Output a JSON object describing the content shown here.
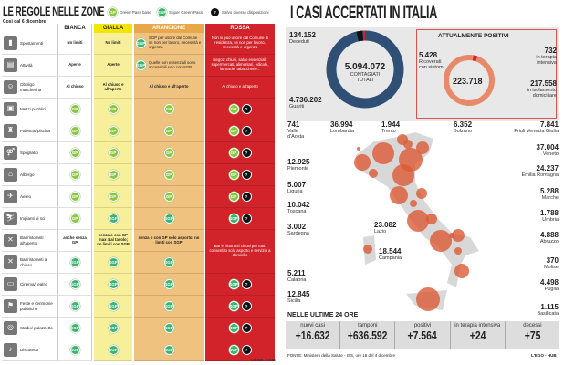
{
  "left": {
    "title": "LE REGOLE NELLE ZONE",
    "subtitle": "Così dal 6 dicembre",
    "legend": {
      "gp": "Green Pass base",
      "sgp": "Super Green Pass",
      "q": "Salvo diverse disposizioni"
    },
    "badges": {
      "gp": "GP",
      "sgp": "SGP",
      "q": "?"
    },
    "zones": [
      "BIANCA",
      "GIALLA",
      "ARANCIONE",
      "ROSSA"
    ],
    "rows": [
      {
        "label": "Spostamenti",
        "icon": "▮",
        "cells": [
          "No limiti",
          "No limiti",
          {
            "b": "sgp",
            "t": "SGP per uscire dal Comune se non per lavoro, necessità e urgenza"
          },
          "Non si può uscire dal Comune di residenza, se non per lavoro, necessità e urgenza"
        ]
      },
      {
        "label": "Attività",
        "icon": "▤",
        "cells": [
          "Aperte",
          "Aperte",
          {
            "b": "sgp",
            "t": "Quelle non essenziali sono accessibili solo con SGP"
          },
          "Negozi chiusi, salvo essenziali: supermercati, alimentari, edicole, farmacie, tabaccherie..."
        ]
      },
      {
        "label": "Obbligo mascherina",
        "icon": "☺",
        "cells": [
          "Al chiuso",
          "Al chiuso e all'aperto",
          "Al chiuso e all'aperto",
          "Al chiuso e all'aperto"
        ]
      },
      {
        "label": "Mezzi pubblici",
        "icon": "▣",
        "cells": [
          "gp",
          "gp",
          "gp",
          "gp+q"
        ]
      },
      {
        "label": "Palestra/ piscina",
        "icon": "♜",
        "cells": [
          "gp",
          "gp",
          "gp",
          "gp+q"
        ]
      },
      {
        "label": "Spogliatoi",
        "icon": "⚤",
        "cells": [
          "gp",
          "gp",
          "gp",
          "gp+q"
        ]
      },
      {
        "label": "Albergo",
        "icon": "⌂",
        "cells": [
          "gp",
          "gp",
          "gp",
          "gp+q"
        ]
      },
      {
        "label": "Aereo",
        "icon": "✈",
        "cells": [
          "gp",
          "gp",
          "gp",
          "gp+q"
        ]
      },
      {
        "label": "Impianti di sci",
        "icon": "⛷",
        "cells": [
          "gp",
          "sgp",
          "sgp",
          "sgp+q"
        ]
      },
      {
        "label": "Bar/ristoranti all'aperto",
        "icon": "✕",
        "cells": [
          "anche senza GP",
          "senza o con GP max 4 al tavolo; no limiti con SGP",
          "senza o con GP solo asporto; no limiti con SGP",
          {
            "span": 2,
            "t": "Bar e ristoranti chiusi per tutti: consentito solo asporto e servizio a domicilio"
          }
        ]
      },
      {
        "label": "Bar/ristoranti al chiuso",
        "icon": "✕",
        "cells": [
          "sgp",
          "sgp",
          "sgp",
          null
        ]
      },
      {
        "label": "Cinema/ teatro",
        "icon": "▭",
        "cells": [
          "sgp",
          "sgp",
          "sgp",
          "sgp+q"
        ]
      },
      {
        "label": "Feste e cerimonie pubbliche",
        "icon": "⚑",
        "cells": [
          "sgp",
          "sgp",
          "sgp",
          "sgp+q"
        ]
      },
      {
        "label": "Stadio/ palazzetto",
        "icon": "◎",
        "cells": [
          "sgp",
          "sgp",
          "sgp",
          "sgp+q"
        ]
      },
      {
        "label": "Discoteca",
        "icon": "♪",
        "cells": [
          "sgp",
          "sgp",
          "sgp",
          "sgp+q"
        ]
      }
    ],
    "credit": "L'EGO - HUB"
  },
  "right": {
    "title": "I CASI ACCERTATI IN ITALIA",
    "total": {
      "value": "5.094.072",
      "label1": "CONTAGIATI",
      "label2": "TOTALI"
    },
    "deceduti": {
      "value": "134.152",
      "label": "Deceduti"
    },
    "guariti": {
      "value": "4.736.202",
      "label": "Guariti"
    },
    "positivi": {
      "title": "ATTUALMENTE POSITIVI",
      "value": "223.718",
      "ricoverati": {
        "value": "5.428",
        "label1": "Ricoverati",
        "label2": "con sintomi"
      },
      "terapia": {
        "value": "732",
        "label1": "in terapia",
        "label2": "intensiva"
      },
      "isolamento": {
        "value": "217.558",
        "label1": "in isolamento",
        "label2": "domiciliare"
      }
    },
    "regions": [
      {
        "name": "Valle d'Aosta",
        "value": "741"
      },
      {
        "name": "Lombardia",
        "value": "36.994"
      },
      {
        "name": "Trento",
        "value": "1.944"
      },
      {
        "name": "Bolzano",
        "value": "6.352"
      },
      {
        "name": "Friuli Venezia Giulia",
        "value": "7.841"
      },
      {
        "name": "Piemonte",
        "value": "12.925"
      },
      {
        "name": "Veneto",
        "value": "37.004"
      },
      {
        "name": "Emilia Romagna",
        "value": "24.237"
      },
      {
        "name": "Liguria",
        "value": "5.007"
      },
      {
        "name": "Marche",
        "value": "5.288"
      },
      {
        "name": "Toscana",
        "value": "10.042"
      },
      {
        "name": "Umbria",
        "value": "1.788"
      },
      {
        "name": "Sardegna",
        "value": "3.002"
      },
      {
        "name": "Lazio",
        "value": "23.082"
      },
      {
        "name": "Abruzzo",
        "value": "4.888"
      },
      {
        "name": "Campania",
        "value": "18.544"
      },
      {
        "name": "Molise",
        "value": "370"
      },
      {
        "name": "Calabria",
        "value": "5.211"
      },
      {
        "name": "Puglia",
        "value": "4.498"
      },
      {
        "name": "Sicilia",
        "value": "12.845"
      },
      {
        "name": "Basilicata",
        "value": "1.115"
      }
    ],
    "last24": {
      "title": "NELLE ULTIME 24 ORE",
      "items": [
        {
          "label": "nuovi casi",
          "value": "+16.632"
        },
        {
          "label": "tamponi",
          "value": "+636.592"
        },
        {
          "label": "positivi",
          "value": "+7.564"
        },
        {
          "label": "in terapia intensiva",
          "value": "+24"
        },
        {
          "label": "decessi",
          "value": "+75"
        }
      ]
    },
    "source": "FONTE: Ministero della Salute - ISS, ore 18 del 4 dicembre",
    "credit": "L'EGO - HUB"
  },
  "colors": {
    "gialla": "#f7ef9a",
    "arancione": "#efc27f",
    "rossa": "#d2232a",
    "donut": "#2f4f75",
    "positivi": "#e8896a"
  }
}
